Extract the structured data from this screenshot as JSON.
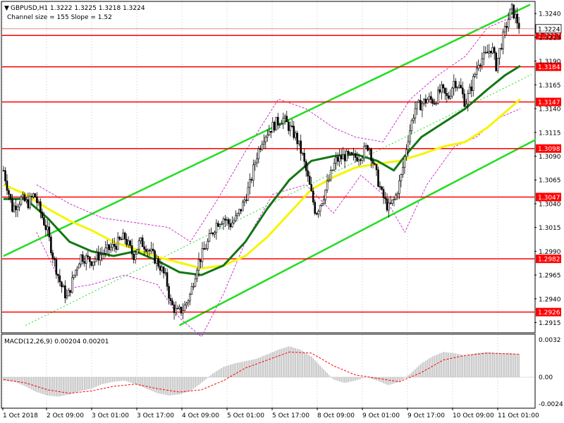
{
  "header": {
    "symbol_line": "GBPUSD,H1  1.3222 1.3225 1.3218 1.3224",
    "indicator_line": "Channel size = 155 Slope = 1.52"
  },
  "macd": {
    "label": "MACD(12,26,9) 0.00204 0.00201",
    "axis": {
      "top": "0.0032",
      "zero": "0.00",
      "bottom": "-0.0024"
    }
  },
  "colors": {
    "level_line": "#ff0000",
    "level_label_bg": "#ff0000",
    "channel": "#22dd22",
    "ma_fast": "#137613",
    "ma_slow": "#f5f500",
    "bollinger": "#cc33cc",
    "macd_hist": "#c0c0c0",
    "macd_signal": "#ff0000",
    "candle": "#000000"
  },
  "chart_data": {
    "type": "candlestick",
    "symbol": "GBPUSD",
    "timeframe": "H1",
    "last_ohlc": {
      "open": 1.3222,
      "high": 1.3225,
      "low": 1.3218,
      "close": 1.3224
    },
    "channel_size": 155,
    "slope": 1.52,
    "ylim": [
      1.2905,
      1.3252
    ],
    "y_ticks": [
      "1.3240",
      "1.3215",
      "1.3190",
      "1.3165",
      "1.3140",
      "1.3115",
      "1.3090",
      "1.3065",
      "1.3040",
      "1.3015",
      "1.2990",
      "1.2965",
      "1.2940",
      "1.2915"
    ],
    "x_ticks": [
      "1 Oct 2018",
      "2 Oct 09:00",
      "3 Oct 01:00",
      "3 Oct 17:00",
      "4 Oct 09:00",
      "5 Oct 01:00",
      "5 Oct 17:00",
      "8 Oct 09:00",
      "9 Oct 01:00",
      "9 Oct 17:00",
      "10 Oct 09:00",
      "11 Oct 01:00"
    ],
    "levels": [
      {
        "label": "1.3217",
        "value": 1.3217
      },
      {
        "label": "1.3184",
        "value": 1.3184
      },
      {
        "label": "1.3147",
        "value": 1.3147
      },
      {
        "label": "1.3098",
        "value": 1.3098
      },
      {
        "label": "1.3047",
        "value": 1.3047
      },
      {
        "label": "1.2982",
        "value": 1.2982
      },
      {
        "label": "1.2926",
        "value": 1.2926
      }
    ],
    "current_price_label": "1.3224",
    "price_path": [
      [
        0,
        1.3075
      ],
      [
        8,
        1.3035
      ],
      [
        16,
        1.3045
      ],
      [
        22,
        1.304
      ],
      [
        28,
        1.305
      ],
      [
        34,
        1.303
      ],
      [
        40,
        1.301
      ],
      [
        46,
        1.298
      ],
      [
        52,
        1.2955
      ],
      [
        58,
        1.294
      ],
      [
        64,
        1.2965
      ],
      [
        70,
        1.2985
      ],
      [
        80,
        1.298
      ],
      [
        90,
        1.2988
      ],
      [
        100,
        1.2995
      ],
      [
        110,
        1.3005
      ],
      [
        118,
        1.2985
      ],
      [
        124,
        1.3
      ],
      [
        130,
        1.2995
      ],
      [
        136,
        1.2985
      ],
      [
        142,
        1.2975
      ],
      [
        148,
        1.296
      ],
      [
        152,
        1.2935
      ],
      [
        158,
        1.2925
      ],
      [
        164,
        1.293
      ],
      [
        170,
        1.2945
      ],
      [
        176,
        1.2975
      ],
      [
        182,
        1.299
      ],
      [
        188,
        1.3005
      ],
      [
        194,
        1.302
      ],
      [
        200,
        1.3025
      ],
      [
        206,
        1.3018
      ],
      [
        212,
        1.3025
      ],
      [
        218,
        1.304
      ],
      [
        224,
        1.306
      ],
      [
        230,
        1.309
      ],
      [
        236,
        1.311
      ],
      [
        242,
        1.3118
      ],
      [
        248,
        1.3125
      ],
      [
        254,
        1.313
      ],
      [
        260,
        1.312
      ],
      [
        266,
        1.311
      ],
      [
        272,
        1.309
      ],
      [
        278,
        1.306
      ],
      [
        284,
        1.303
      ],
      [
        290,
        1.3045
      ],
      [
        296,
        1.3065
      ],
      [
        302,
        1.3085
      ],
      [
        310,
        1.309
      ],
      [
        318,
        1.3088
      ],
      [
        326,
        1.3092
      ],
      [
        332,
        1.3102
      ],
      [
        338,
        1.3075
      ],
      [
        344,
        1.305
      ],
      [
        350,
        1.3035
      ],
      [
        356,
        1.3045
      ],
      [
        362,
        1.307
      ],
      [
        368,
        1.311
      ],
      [
        374,
        1.314
      ],
      [
        380,
        1.3145
      ],
      [
        386,
        1.315
      ],
      [
        392,
        1.3148
      ],
      [
        398,
        1.316
      ],
      [
        404,
        1.315
      ],
      [
        410,
        1.317
      ],
      [
        416,
        1.316
      ],
      [
        420,
        1.3145
      ],
      [
        426,
        1.3165
      ],
      [
        432,
        1.319
      ],
      [
        438,
        1.3195
      ],
      [
        444,
        1.3205
      ],
      [
        448,
        1.3185
      ],
      [
        452,
        1.3205
      ],
      [
        458,
        1.323
      ],
      [
        462,
        1.3245
      ],
      [
        466,
        1.3235
      ],
      [
        470,
        1.3224
      ]
    ],
    "ma_fast": [
      [
        0,
        1.3045
      ],
      [
        20,
        1.3045
      ],
      [
        40,
        1.3025
      ],
      [
        60,
        1.3
      ],
      [
        80,
        1.299
      ],
      [
        100,
        1.2985
      ],
      [
        120,
        1.299
      ],
      [
        140,
        1.298
      ],
      [
        160,
        1.2968
      ],
      [
        180,
        1.2965
      ],
      [
        200,
        1.2975
      ],
      [
        220,
        1.3
      ],
      [
        240,
        1.3035
      ],
      [
        260,
        1.3065
      ],
      [
        280,
        1.3085
      ],
      [
        300,
        1.309
      ],
      [
        320,
        1.3092
      ],
      [
        340,
        1.3085
      ],
      [
        355,
        1.3075
      ],
      [
        365,
        1.309
      ],
      [
        380,
        1.311
      ],
      [
        400,
        1.3125
      ],
      [
        420,
        1.314
      ],
      [
        440,
        1.316
      ],
      [
        456,
        1.3175
      ],
      [
        470,
        1.3185
      ]
    ],
    "ma_slow": [
      [
        0,
        1.306
      ],
      [
        20,
        1.305
      ],
      [
        40,
        1.3035
      ],
      [
        60,
        1.3022
      ],
      [
        80,
        1.3012
      ],
      [
        100,
        1.3
      ],
      [
        120,
        1.2992
      ],
      [
        140,
        1.2984
      ],
      [
        160,
        1.2978
      ],
      [
        180,
        1.2972
      ],
      [
        200,
        1.2975
      ],
      [
        220,
        1.2985
      ],
      [
        240,
        1.3005
      ],
      [
        260,
        1.303
      ],
      [
        280,
        1.3055
      ],
      [
        300,
        1.3068
      ],
      [
        320,
        1.3078
      ],
      [
        340,
        1.3082
      ],
      [
        360,
        1.3085
      ],
      [
        380,
        1.3092
      ],
      [
        400,
        1.31
      ],
      [
        420,
        1.3105
      ],
      [
        440,
        1.312
      ],
      [
        460,
        1.314
      ],
      [
        470,
        1.315
      ]
    ],
    "bollinger_upper": [
      [
        30,
        1.306
      ],
      [
        60,
        1.304
      ],
      [
        90,
        1.3025
      ],
      [
        120,
        1.302
      ],
      [
        150,
        1.3015
      ],
      [
        170,
        1.3
      ],
      [
        195,
        1.3045
      ],
      [
        220,
        1.3095
      ],
      [
        250,
        1.315
      ],
      [
        275,
        1.314
      ],
      [
        300,
        1.312
      ],
      [
        320,
        1.311
      ],
      [
        345,
        1.3105
      ],
      [
        370,
        1.315
      ],
      [
        395,
        1.3175
      ],
      [
        420,
        1.3195
      ],
      [
        440,
        1.3225
      ],
      [
        460,
        1.3235
      ],
      [
        470,
        1.324
      ]
    ],
    "bollinger_lower": [
      [
        30,
        1.301
      ],
      [
        55,
        1.295
      ],
      [
        80,
        1.2955
      ],
      [
        110,
        1.2965
      ],
      [
        140,
        1.2955
      ],
      [
        160,
        1.292
      ],
      [
        180,
        1.29
      ],
      [
        200,
        1.2945
      ],
      [
        220,
        1.3
      ],
      [
        245,
        1.305
      ],
      [
        275,
        1.306
      ],
      [
        300,
        1.303
      ],
      [
        325,
        1.307
      ],
      [
        345,
        1.305
      ],
      [
        365,
        1.301
      ],
      [
        385,
        1.306
      ],
      [
        410,
        1.31
      ],
      [
        430,
        1.311
      ],
      [
        450,
        1.313
      ],
      [
        470,
        1.314
      ]
    ],
    "channel_upper": {
      "x0": 0,
      "y0": 1.2985,
      "x1": 470,
      "y1": 1.3245
    },
    "channel_lower": {
      "x0": 160,
      "y0": 1.2912,
      "x1": 470,
      "y1": 1.31
    },
    "channel_mid": {
      "x0": 20,
      "y0": 1.2912,
      "x1": 470,
      "y1": 1.317
    },
    "macd_hist": [
      [
        0,
        -0.0003
      ],
      [
        10,
        -0.0004
      ],
      [
        20,
        -0.0008
      ],
      [
        30,
        -0.0013
      ],
      [
        40,
        -0.0016
      ],
      [
        50,
        -0.0017
      ],
      [
        60,
        -0.0015
      ],
      [
        70,
        -0.0012
      ],
      [
        80,
        -0.001
      ],
      [
        90,
        -0.0006
      ],
      [
        100,
        -0.0004
      ],
      [
        110,
        -0.0003
      ],
      [
        120,
        -0.0006
      ],
      [
        130,
        -0.001
      ],
      [
        140,
        -0.0014
      ],
      [
        150,
        -0.0016
      ],
      [
        160,
        -0.0015
      ],
      [
        170,
        -0.0012
      ],
      [
        180,
        -0.0005
      ],
      [
        190,
        0.0003
      ],
      [
        200,
        0.0009
      ],
      [
        210,
        0.0012
      ],
      [
        220,
        0.0014
      ],
      [
        230,
        0.0016
      ],
      [
        240,
        0.002
      ],
      [
        250,
        0.0024
      ],
      [
        260,
        0.0027
      ],
      [
        270,
        0.0024
      ],
      [
        280,
        0.0018
      ],
      [
        290,
        0.0008
      ],
      [
        300,
        -0.0002
      ],
      [
        310,
        -0.0005
      ],
      [
        320,
        -0.0003
      ],
      [
        330,
        0.0
      ],
      [
        340,
        -0.0003
      ],
      [
        350,
        -0.0007
      ],
      [
        360,
        -0.0004
      ],
      [
        370,
        0.0003
      ],
      [
        380,
        0.0012
      ],
      [
        390,
        0.0018
      ],
      [
        400,
        0.0022
      ],
      [
        410,
        0.0021
      ],
      [
        420,
        0.0019
      ],
      [
        430,
        0.0021
      ],
      [
        440,
        0.0022
      ],
      [
        450,
        0.0021
      ],
      [
        460,
        0.0021
      ],
      [
        470,
        0.002
      ]
    ],
    "macd_signal": [
      [
        0,
        -0.0002
      ],
      [
        20,
        -0.0005
      ],
      [
        40,
        -0.0011
      ],
      [
        60,
        -0.0014
      ],
      [
        80,
        -0.0012
      ],
      [
        100,
        -0.0008
      ],
      [
        120,
        -0.0006
      ],
      [
        140,
        -0.001
      ],
      [
        160,
        -0.0013
      ],
      [
        180,
        -0.0011
      ],
      [
        200,
        -0.0003
      ],
      [
        220,
        0.0008
      ],
      [
        240,
        0.0015
      ],
      [
        260,
        0.0022
      ],
      [
        280,
        0.0021
      ],
      [
        300,
        0.001
      ],
      [
        320,
        0.0002
      ],
      [
        340,
        -0.0001
      ],
      [
        360,
        -0.0004
      ],
      [
        380,
        0.0004
      ],
      [
        400,
        0.0015
      ],
      [
        420,
        0.0019
      ],
      [
        440,
        0.0021
      ],
      [
        470,
        0.002
      ]
    ]
  }
}
